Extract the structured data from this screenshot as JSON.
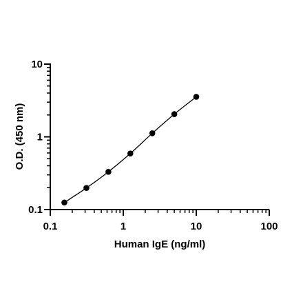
{
  "chart_data": {
    "type": "scatter",
    "title": "",
    "xlabel": "Human IgE (ng/ml)",
    "ylabel": "O.D. (450 nm)",
    "xscale": "log",
    "yscale": "log",
    "xlim": [
      0.1,
      100
    ],
    "ylim": [
      0.1,
      10
    ],
    "x_tick_labels": [
      "0.1",
      "1",
      "10",
      "100"
    ],
    "y_tick_labels": [
      "0.1",
      "1",
      "10"
    ],
    "grid": false,
    "legend": "none",
    "fit_line": true,
    "series": [
      {
        "x": [
          0.156,
          0.3125,
          0.625,
          1.25,
          2.5,
          5,
          10
        ],
        "y": [
          0.125,
          0.198,
          0.33,
          0.59,
          1.12,
          2.05,
          3.55
        ]
      }
    ]
  }
}
